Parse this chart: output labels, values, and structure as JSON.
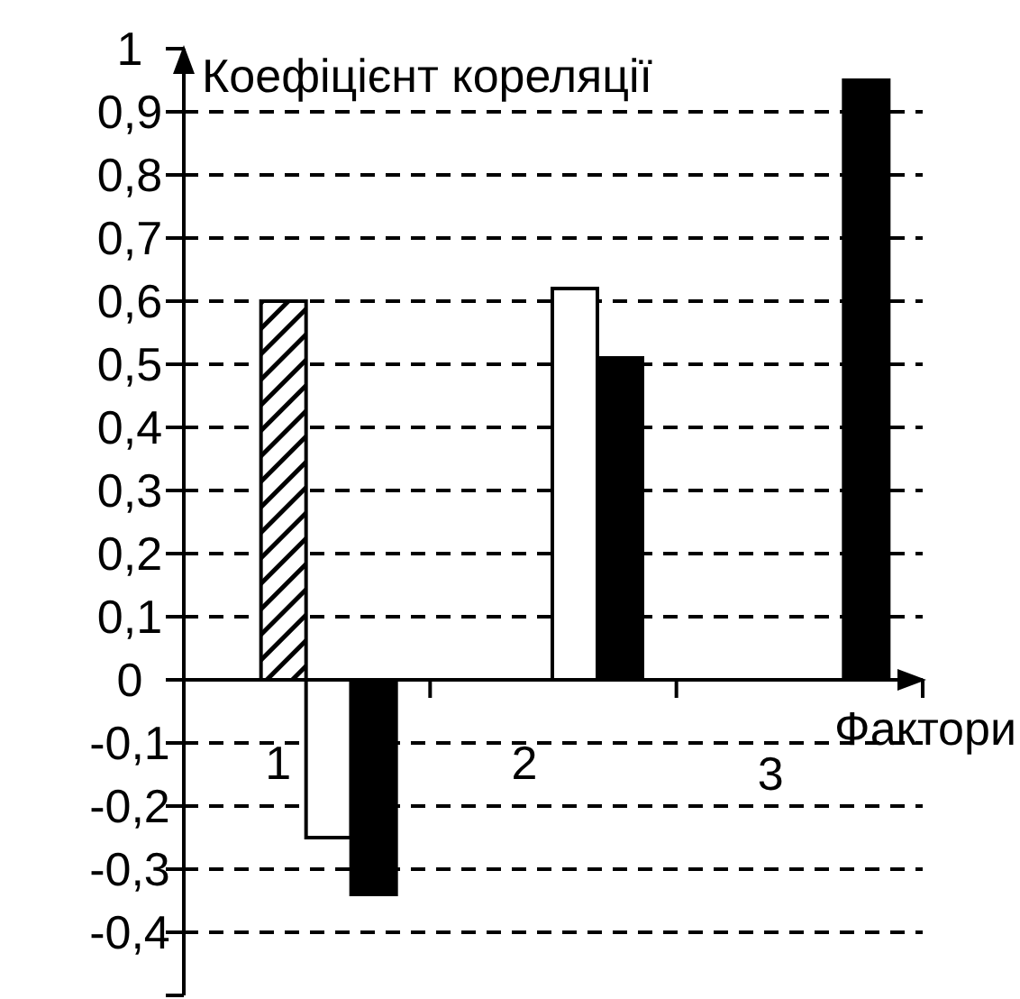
{
  "chart_data": {
    "type": "bar",
    "xlabel": "Фактори",
    "ylabel": "Коефіцієнт кореляції",
    "categories": [
      "1",
      "2",
      "3"
    ],
    "series": [
      {
        "color": "#000000",
        "values": [
          0.6,
          null,
          null
        ]
      },
      {
        "color": "#ffffff",
        "values": [
          -0.25,
          0.62,
          null
        ]
      },
      {
        "color": "#000000",
        "values": [
          -0.34,
          0.51,
          0.95
        ]
      }
    ],
    "ylim": [
      -0.5,
      1
    ],
    "yticks": [
      {
        "value": -0.5,
        "label": null
      },
      {
        "value": -0.4,
        "label": "-0,4"
      },
      {
        "value": -0.3,
        "label": "-0,3"
      },
      {
        "value": -0.2,
        "label": "-0,2"
      },
      {
        "value": -0.1,
        "label": "-0,1"
      },
      {
        "value": 0,
        "label": "0"
      },
      {
        "value": 0.1,
        "label": "0,1"
      },
      {
        "value": 0.2,
        "label": "0,2"
      },
      {
        "value": 0.3,
        "label": "0,3"
      },
      {
        "value": 0.4,
        "label": "0,4"
      },
      {
        "value": 0.5,
        "label": "0,5"
      },
      {
        "value": 0.6,
        "label": "0,6"
      },
      {
        "value": 0.7,
        "label": "0,7"
      },
      {
        "value": 0.8,
        "label": "0,8"
      },
      {
        "value": 0.9,
        "label": "0,9"
      },
      {
        "value": 1,
        "label": "1"
      }
    ],
    "grid": "y",
    "line_style": "dashed"
  }
}
